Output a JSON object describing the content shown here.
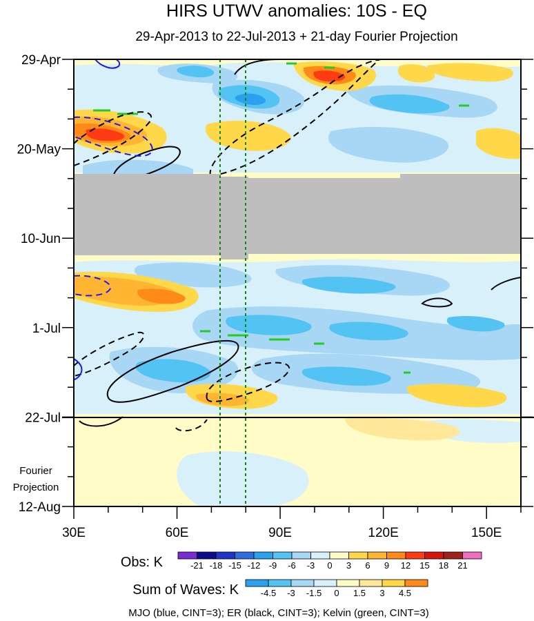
{
  "chart_data": {
    "type": "heatmap",
    "title": "HIRS UTWV anomalies: 10S - EQ",
    "subtitle": "29-Apr-2013 to 22-Jul-2013 + 21-day Fourier Projection",
    "x_axis": {
      "range": [
        30,
        160
      ],
      "ticks": [
        30,
        60,
        90,
        120,
        150
      ],
      "tick_labels": [
        "30E",
        "60E",
        "90E",
        "120E",
        "150E"
      ]
    },
    "y_axis": {
      "range_days": [
        0,
        105
      ],
      "ticks_days": [
        0,
        21,
        42,
        63,
        84,
        105
      ],
      "tick_labels": [
        "29-Apr",
        "20-May",
        "10-Jun",
        "1-Jul",
        "22-Jul",
        "12-Aug"
      ]
    },
    "observation_end_day": 84,
    "projection_label_line1": "Fourier",
    "projection_label_line2": "Projection",
    "missing_data_band_days": [
      27,
      46
    ],
    "reference_longitudes": [
      72.5,
      80
    ],
    "obs_colorbar": {
      "title": "Obs: K",
      "levels": [
        "-21",
        "-18",
        "-15",
        "-12",
        "-9",
        "-6",
        "-3",
        "0",
        "3",
        "6",
        "9",
        "12",
        "15",
        "18",
        "21"
      ],
      "colors": [
        "#7a2bd6",
        "#0c0c8c",
        "#1f36c4",
        "#2f6ee0",
        "#2aa0ee",
        "#53c3f3",
        "#a8d6f5",
        "#d7f0fa",
        "#fffcc7",
        "#ffd84a",
        "#ffb531",
        "#ff8a1a",
        "#ff3b14",
        "#d3170f",
        "#a0211b",
        "#f06ec0"
      ]
    },
    "waves_colorbar": {
      "title": "Sum of Waves: K",
      "levels": [
        "-4.5",
        "-3",
        "-1.5",
        "0",
        "1.5",
        "3",
        "4.5"
      ],
      "colors": [
        "#2aa0ee",
        "#53c3f3",
        "#a8d6f5",
        "#d7f0fa",
        "#fffcc7",
        "#ffe79a",
        "#ffd84a",
        "#ff8a1a"
      ]
    },
    "footer": "MJO (blue, CINT=3); ER (black, CINT=3); Kelvin (green, CINT=3)"
  }
}
